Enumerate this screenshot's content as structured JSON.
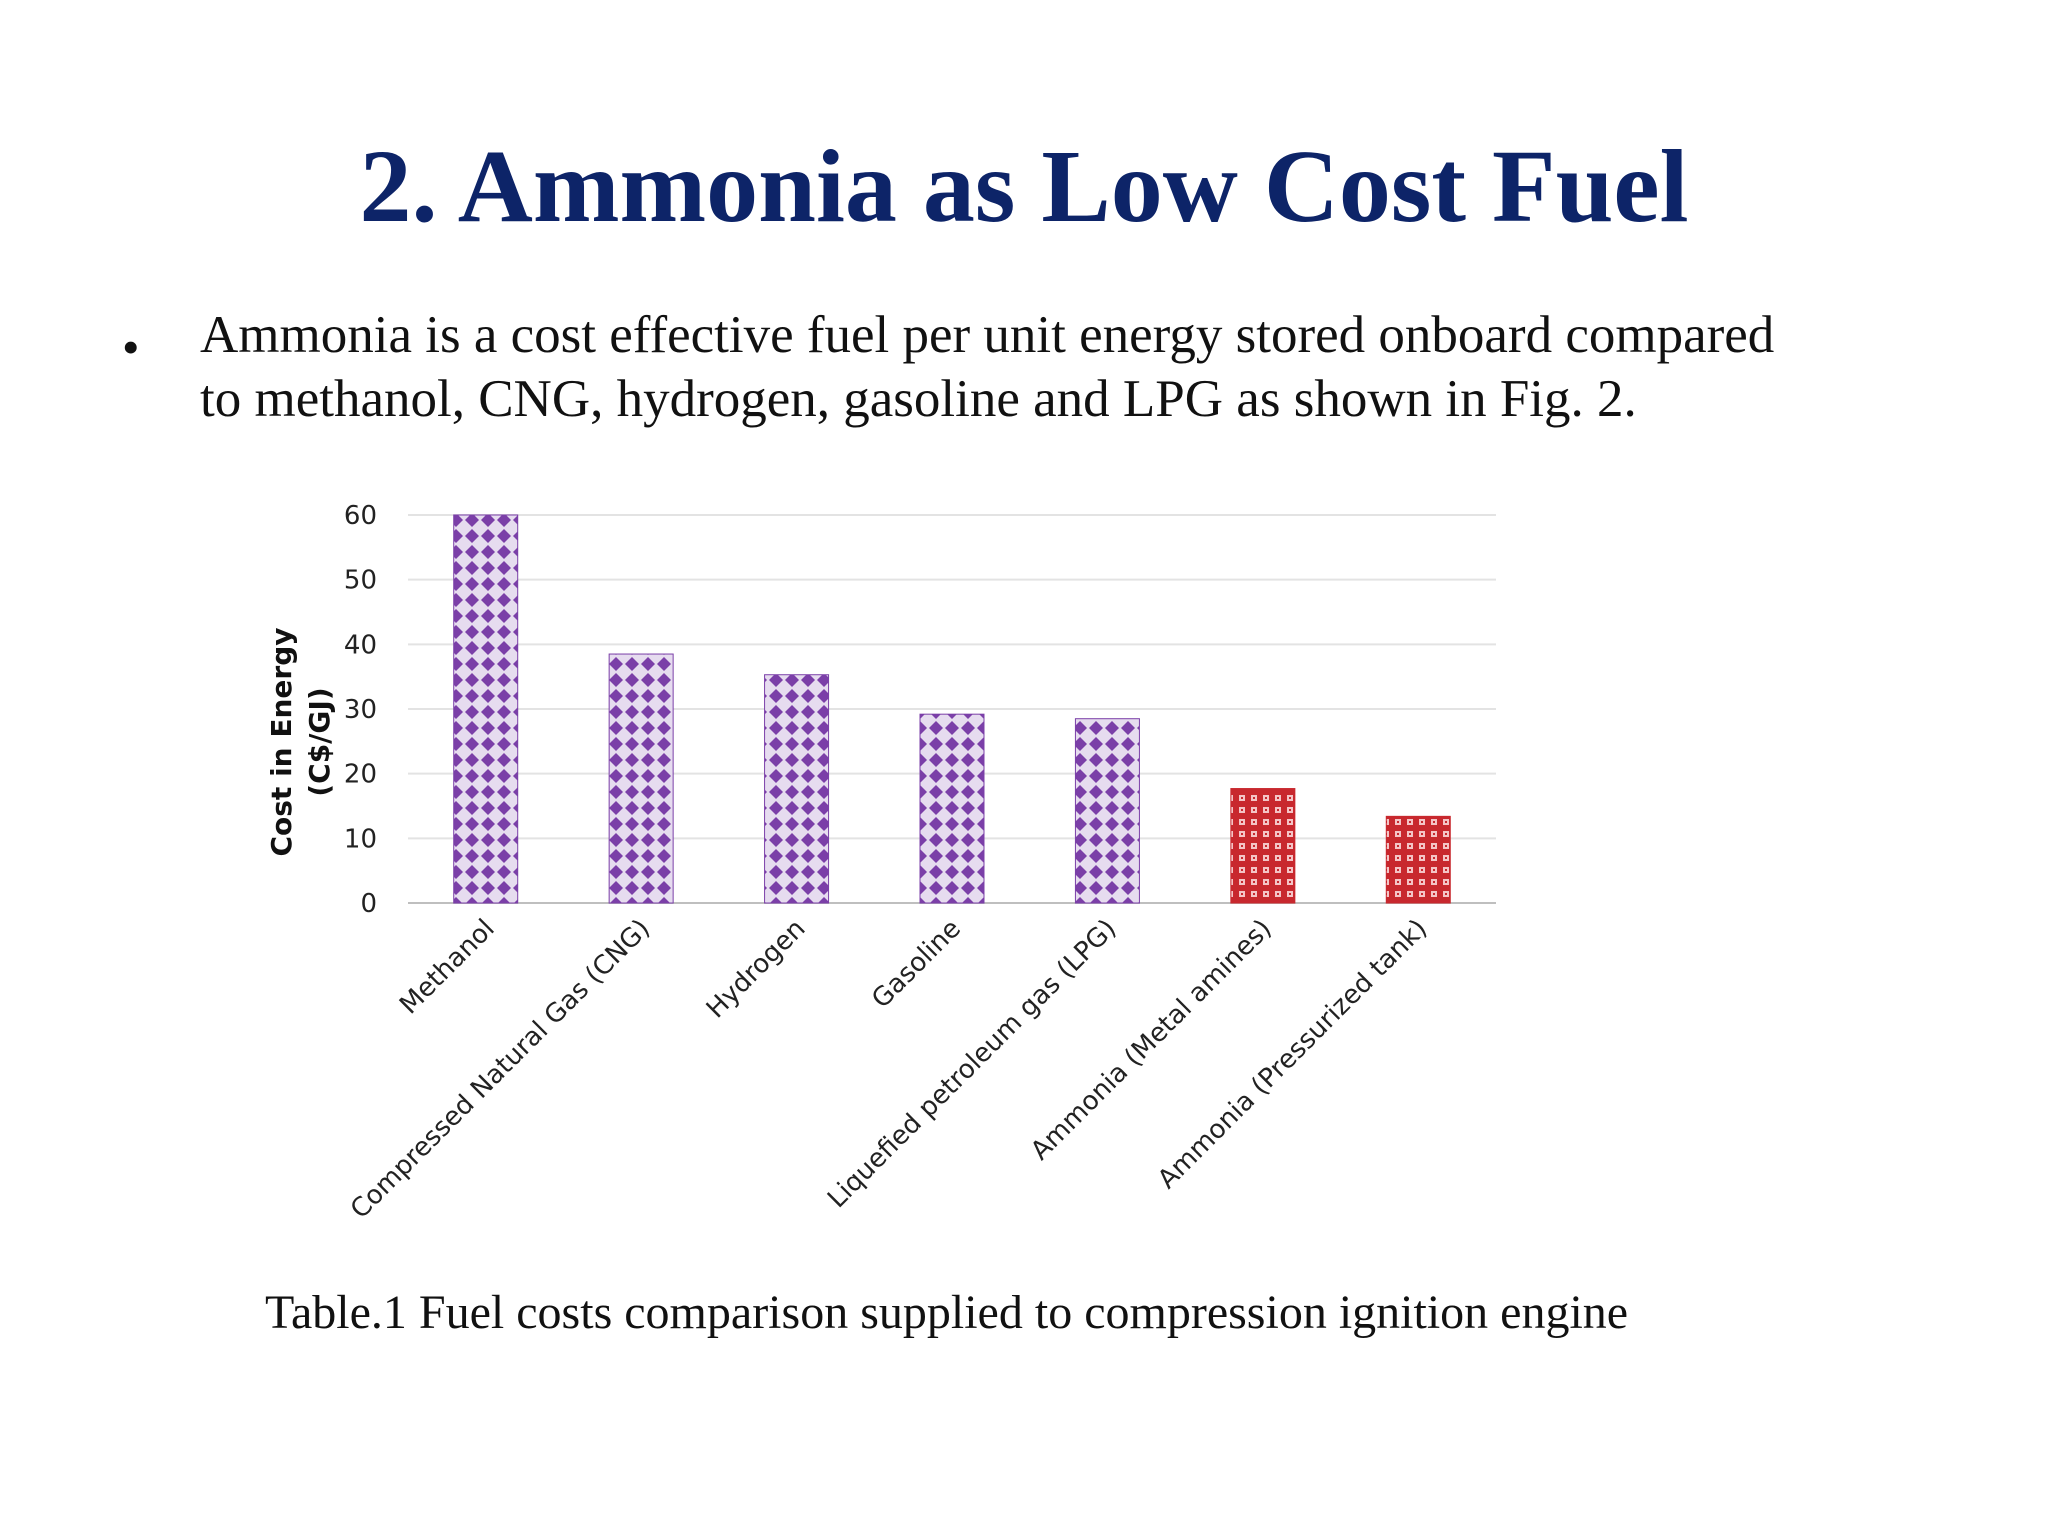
{
  "slide": {
    "title": "2.  Ammonia as Low Cost Fuel",
    "bullet": "•",
    "bullet_lines": [
      "Ammonia is a cost effective fuel per unit energy stored onboard compared",
      "to methanol, CNG, hydrogen, gasoline and LPG as shown in Fig. 2."
    ],
    "caption": "Table.1 Fuel costs comparison supplied to compression ignition engine"
  },
  "chart_data": {
    "type": "bar",
    "categories": [
      "Methanol",
      "Compressed Natural Gas (CNG)",
      "Hydrogen",
      "Gasoline",
      "Liquefied petroleum gas (LPG)",
      "Ammonia (Metal amines)",
      "Ammonia (Pressurized tank)"
    ],
    "values": [
      60,
      38.5,
      35.3,
      29.2,
      28.5,
      17.7,
      13.4
    ],
    "bar_colors": [
      "#7b3fa8",
      "#7b3fa8",
      "#7b3fa8",
      "#7b3fa8",
      "#7b3fa8",
      "#c8282e",
      "#c8282e"
    ],
    "ylabel_lines": [
      "Cost in Energy",
      "(C$/GJ)"
    ],
    "yticks": [
      0,
      10,
      20,
      30,
      40,
      50,
      60
    ],
    "ylim": [
      0,
      60
    ],
    "grid": true,
    "legend": "none"
  }
}
